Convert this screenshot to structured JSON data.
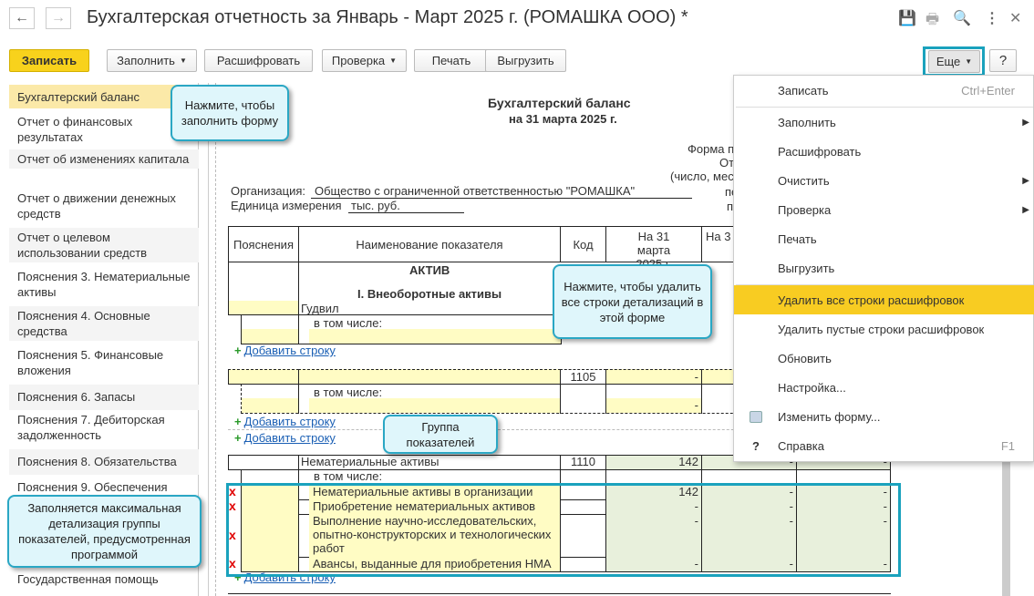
{
  "window": {
    "title": "Бухгалтерская отчетность за Январь - Март 2025 г. (РОМАШКА ООО) *",
    "back": "←",
    "forward": "→",
    "icons": [
      "save-icon",
      "print-icon",
      "preview-icon",
      "more-icon",
      "close-icon"
    ]
  },
  "toolbar": {
    "save": "Записать",
    "fill": "Заполнить",
    "decode": "Расшифровать",
    "check": "Проверка",
    "print": "Печать",
    "export": "Выгрузить",
    "more": "Еще",
    "help": "?"
  },
  "sidebar": {
    "items": [
      "Бухгалтерский баланс",
      "Отчет о финансовых результатах",
      "Отчет об изменениях капитала",
      "Отчет о движении денежных средств",
      "Отчет о целевом использовании средств",
      "Пояснения 3. Нематериальные активы",
      "Пояснения 4. Основные средства",
      "Пояснения 5. Финансовые вложения",
      "Пояснения 6. Запасы",
      "Пояснения 7. Дебиторская задолженность",
      "Пояснения 8. Обязательства",
      "Пояснения 9. Обеспечения",
      "",
      "Государственная помощь"
    ]
  },
  "doc": {
    "title": "Бухгалтерский баланс",
    "subtitle": "на 31 марта 2025 г.",
    "right_labels": [
      "Форма п",
      "Отчетн",
      "(число, мес",
      "пе",
      "п"
    ],
    "org_label": "Организация:",
    "org_value": "Общество с ограниченной ответственностью \"РОМАШКА\"",
    "unit_label": "Единица измерения",
    "unit_value": "тыс. руб.",
    "headers": [
      "Пояснения",
      "Наименование показателя",
      "Код",
      "На 31 марта 2025 г.",
      "На 3"
    ],
    "section": "АКТИВ",
    "subsection": "I. Внеоборотные активы",
    "goodwill": "Гудвил",
    "including": "в том числе:",
    "add_row": "Добавить строку",
    "code_1105": "1105",
    "val_1105": "-",
    "val_1105_sub": "-",
    "ia_name": "Нематериальные активы",
    "ia_code": "1110",
    "ia_values": [
      "142",
      "-",
      "-"
    ],
    "details": [
      {
        "name": "Нематериальные активы в организации",
        "values": [
          "142",
          "-",
          "-"
        ]
      },
      {
        "name": "Приобретение нематериальных активов",
        "values": [
          "-",
          "-",
          "-"
        ]
      },
      {
        "name": "Выполнение научно-исследовательских, опытно-конструкторских и технологических работ",
        "values": [
          "-",
          "-",
          "-"
        ]
      },
      {
        "name": "Авансы, выданные для приобретения НМА",
        "values": [
          "-",
          "-",
          "-"
        ]
      }
    ],
    "delete_mark": "x"
  },
  "menu": {
    "items": [
      {
        "label": "Записать",
        "shortcut": "Ctrl+Enter"
      },
      {
        "label": "Заполнить",
        "submenu": "▶"
      },
      {
        "label": "Расшифровать"
      },
      {
        "label": "Очистить",
        "submenu": "▶"
      },
      {
        "label": "Проверка",
        "submenu": "▶"
      },
      {
        "label": "Печать"
      },
      {
        "label": "Выгрузить"
      },
      {
        "label": "Удалить все строки расшифровок"
      },
      {
        "label": "Удалить пустые строки расшифровок"
      },
      {
        "label": "Обновить"
      },
      {
        "label": "Настройка..."
      },
      {
        "label": "Изменить форму..."
      },
      {
        "label": "Справка",
        "shortcut": "F1",
        "icon": "?"
      }
    ]
  },
  "callouts": {
    "fill": "Нажмите, чтобы заполнить форму",
    "delete": "Нажмите, чтобы удалить все строки детализаций в этой форме",
    "group": "Группа показателей",
    "detail": "Заполняется максимальная детализация группы показателей, предусмотренная программой"
  },
  "colors": {
    "accent": "#2aa7c4",
    "save_button": "#f8d21c",
    "highlight": "#f8cc22",
    "editable": "#fffcc4",
    "computed": "#e8f0dc"
  }
}
